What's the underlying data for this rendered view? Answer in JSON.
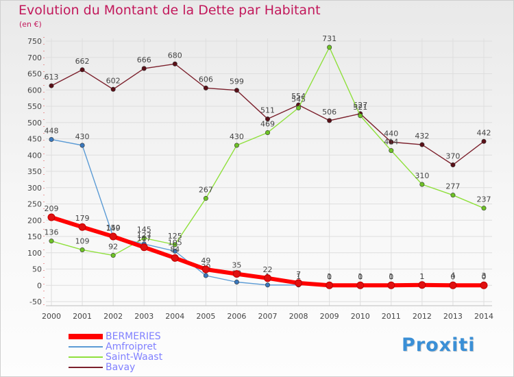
{
  "title": "Evolution du Montant de la Dette par Habitant",
  "subtitle": "(en €)",
  "logo": {
    "text": "Proxiti",
    "colors": [
      "#3a8fd6",
      "#e0701e",
      "#f0a32a",
      "#5aa832",
      "#3a8fd6",
      "#e0701e",
      "#f0a32a"
    ]
  },
  "chart_data": {
    "type": "line",
    "x": [
      "2000",
      "2001",
      "2002",
      "2003",
      "2004",
      "2005",
      "2006",
      "2007",
      "2008",
      "2009",
      "2010",
      "2011",
      "2012",
      "2013",
      "2014"
    ],
    "yticks": [
      -50,
      0,
      50,
      100,
      150,
      200,
      250,
      300,
      350,
      400,
      450,
      500,
      550,
      600,
      650,
      700,
      750
    ],
    "ylim": [
      -50,
      750
    ],
    "grid": true,
    "legend_position": "bottom-left",
    "series": [
      {
        "name": "Bavay",
        "color": "#7b1f2b",
        "marker": "#5a1018",
        "values": [
          613,
          662,
          602,
          666,
          680,
          606,
          599,
          511,
          554,
          506,
          527,
          440,
          432,
          370,
          442
        ],
        "labels": [
          "613",
          "662",
          "602",
          "666",
          "680",
          "606",
          "599",
          "511",
          "554",
          "506",
          "527",
          "440",
          "432",
          "370",
          "442"
        ]
      },
      {
        "name": "Saint-Waast",
        "color": "#8fe03c",
        "marker": "#6ec226",
        "values": [
          136,
          109,
          92,
          145,
          125,
          267,
          430,
          469,
          545,
          731,
          521,
          414,
          310,
          277,
          237
        ],
        "labels": [
          "136",
          "109",
          "92",
          "145",
          "125",
          "267",
          "430",
          "469",
          "545",
          "731",
          "521",
          "414",
          "310",
          "277",
          "237"
        ]
      },
      {
        "name": "Amfroipret",
        "color": "#5b9bd5",
        "marker": "#3a78bd",
        "values": [
          448,
          430,
          149,
          127,
          105,
          30,
          10,
          1,
          1,
          1,
          1,
          1,
          1,
          4,
          3
        ],
        "labels": [
          "448",
          "430",
          "149",
          "127",
          "105",
          "30",
          "10",
          "1",
          "1",
          "1",
          "1",
          "1",
          "1",
          "4",
          "3"
        ]
      },
      {
        "name": "BERMERIES",
        "color": "#ff0000",
        "marker": "#e01010",
        "values": [
          209,
          179,
          150,
          117,
          84,
          49,
          35,
          22,
          7,
          0,
          0,
          0,
          1,
          0,
          0
        ],
        "labels": [
          "209",
          "179",
          "150",
          "117",
          "84",
          "49",
          "35",
          "22",
          "7",
          "0",
          "0",
          "0",
          "1",
          "0",
          "0"
        ]
      }
    ],
    "legend_order": [
      "BERMERIES",
      "Amfroipret",
      "Saint-Waast",
      "Bavay"
    ]
  }
}
